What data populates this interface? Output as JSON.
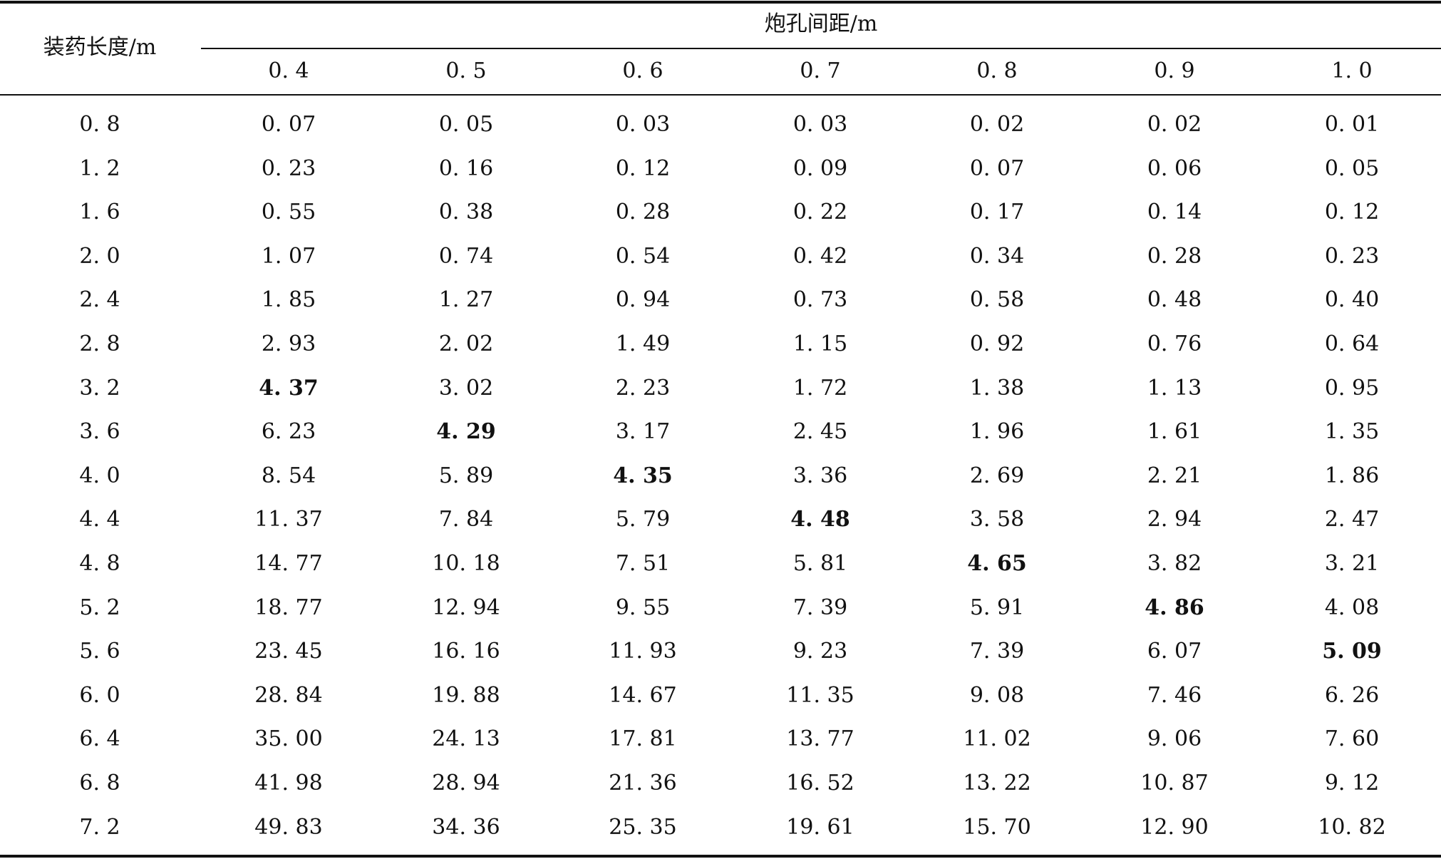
{
  "table": {
    "row_header": "装药长度/m",
    "col_group_header": "炮孔间距/m",
    "columns": [
      "0. 4",
      "0. 5",
      "0. 6",
      "0. 7",
      "0. 8",
      "0. 9",
      "1. 0"
    ],
    "rows": [
      {
        "label": "0. 8",
        "values": [
          "0. 07",
          "0. 05",
          "0. 03",
          "0. 03",
          "0. 02",
          "0. 02",
          "0. 01"
        ],
        "bold_index": -1
      },
      {
        "label": "1. 2",
        "values": [
          "0. 23",
          "0. 16",
          "0. 12",
          "0. 09",
          "0. 07",
          "0. 06",
          "0. 05"
        ],
        "bold_index": -1
      },
      {
        "label": "1. 6",
        "values": [
          "0. 55",
          "0. 38",
          "0. 28",
          "0. 22",
          "0. 17",
          "0. 14",
          "0. 12"
        ],
        "bold_index": -1
      },
      {
        "label": "2. 0",
        "values": [
          "1. 07",
          "0. 74",
          "0. 54",
          "0. 42",
          "0. 34",
          "0. 28",
          "0. 23"
        ],
        "bold_index": -1
      },
      {
        "label": "2. 4",
        "values": [
          "1. 85",
          "1. 27",
          "0. 94",
          "0. 73",
          "0. 58",
          "0. 48",
          "0. 40"
        ],
        "bold_index": -1
      },
      {
        "label": "2. 8",
        "values": [
          "2. 93",
          "2. 02",
          "1. 49",
          "1. 15",
          "0. 92",
          "0. 76",
          "0. 64"
        ],
        "bold_index": -1
      },
      {
        "label": "3. 2",
        "values": [
          "4. 37",
          "3. 02",
          "2. 23",
          "1. 72",
          "1. 38",
          "1. 13",
          "0. 95"
        ],
        "bold_index": 0
      },
      {
        "label": "3. 6",
        "values": [
          "6. 23",
          "4. 29",
          "3. 17",
          "2. 45",
          "1. 96",
          "1. 61",
          "1. 35"
        ],
        "bold_index": 1
      },
      {
        "label": "4. 0",
        "values": [
          "8. 54",
          "5. 89",
          "4. 35",
          "3. 36",
          "2. 69",
          "2. 21",
          "1. 86"
        ],
        "bold_index": 2
      },
      {
        "label": "4. 4",
        "values": [
          "11. 37",
          "7. 84",
          "5. 79",
          "4. 48",
          "3. 58",
          "2. 94",
          "2. 47"
        ],
        "bold_index": 3
      },
      {
        "label": "4. 8",
        "values": [
          "14. 77",
          "10. 18",
          "7. 51",
          "5. 81",
          "4. 65",
          "3. 82",
          "3. 21"
        ],
        "bold_index": 4
      },
      {
        "label": "5. 2",
        "values": [
          "18. 77",
          "12. 94",
          "9. 55",
          "7. 39",
          "5. 91",
          "4. 86",
          "4. 08"
        ],
        "bold_index": 5
      },
      {
        "label": "5. 6",
        "values": [
          "23. 45",
          "16. 16",
          "11. 93",
          "9. 23",
          "7. 39",
          "6. 07",
          "5. 09"
        ],
        "bold_index": 6
      },
      {
        "label": "6. 0",
        "values": [
          "28. 84",
          "19. 88",
          "14. 67",
          "11. 35",
          "9. 08",
          "7. 46",
          "6. 26"
        ],
        "bold_index": -1
      },
      {
        "label": "6. 4",
        "values": [
          "35. 00",
          "24. 13",
          "17. 81",
          "13. 77",
          "11. 02",
          "9. 06",
          "7. 60"
        ],
        "bold_index": -1
      },
      {
        "label": "6. 8",
        "values": [
          "41. 98",
          "28. 94",
          "21. 36",
          "16. 52",
          "13. 22",
          "10. 87",
          "9. 12"
        ],
        "bold_index": -1
      },
      {
        "label": "7. 2",
        "values": [
          "49. 83",
          "34. 36",
          "25. 35",
          "19. 61",
          "15. 70",
          "12. 90",
          "10. 82"
        ],
        "bold_index": -1
      }
    ]
  }
}
